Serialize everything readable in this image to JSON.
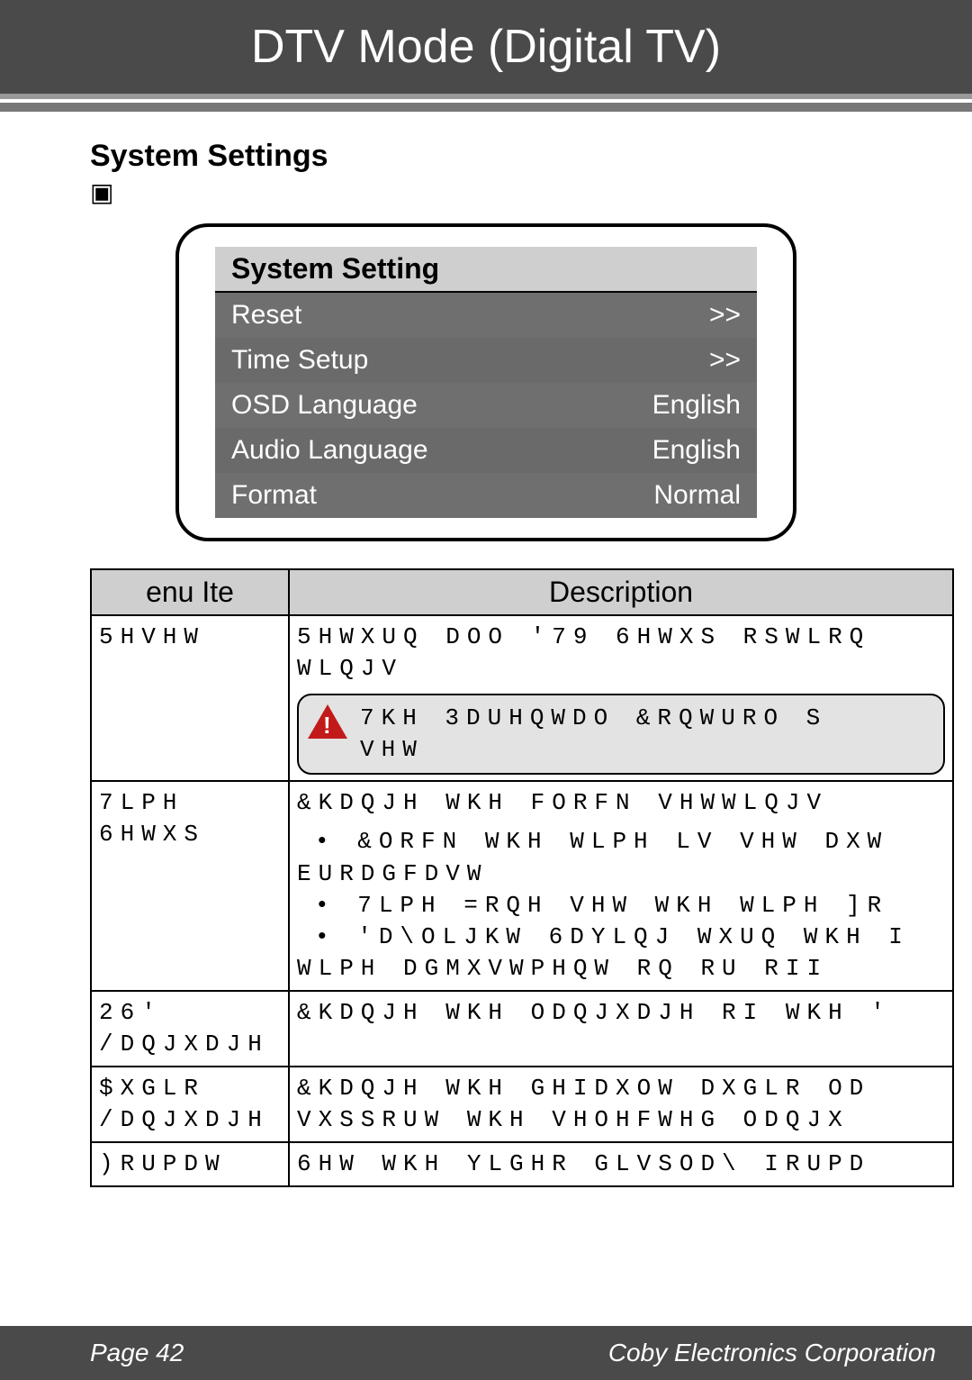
{
  "header": {
    "title": "DTV Mode (Digital TV)"
  },
  "section": {
    "title": "System Settings",
    "subchar": "▣"
  },
  "menu": {
    "header": "System Setting",
    "rows": [
      {
        "label": "Reset",
        "value": ">>"
      },
      {
        "label": "Time Setup",
        "value": ">>"
      },
      {
        "label": "OSD Language",
        "value": "English"
      },
      {
        "label": "Audio Language",
        "value": "English"
      },
      {
        "label": "Format",
        "value": "Normal"
      }
    ]
  },
  "table": {
    "head_item": "enu Ite",
    "head_desc": "Description",
    "rows": [
      {
        "item": "5HVHW",
        "desc_line1": "5HWXUQ DOO '79 6HWXS RSWLRQ",
        "desc_line2": "WLQJV",
        "warn_line1": "7KH 3DUHQWDO &RQWURO S",
        "warn_line2": "VHW"
      },
      {
        "item": "7LPH 6HWXS",
        "head": "&KDQJH WKH FORFN VHWWLQJV",
        "bullets": [
          "&ORFN  WKH WLPH LV VHW DXW\nEURDGFDVW",
          "7LPH =RQH  VHW WKH WLPH ]R",
          "'D\\OLJKW 6DYLQJ  WXUQ WKH I\nWLPH DGMXVWPHQW RQ RU RII"
        ]
      },
      {
        "item": "26' /DQJXDJH",
        "desc": "&KDQJH WKH ODQJXDJH RI WKH '"
      },
      {
        "item": "$XGLR /DQJXDJH",
        "desc": "&KDQJH WKH GHIDXOW DXGLR OD\nVXSSRUW WKH VHOHFWHG ODQJX"
      },
      {
        "item": ")RUPDW",
        "desc": "6HW WKH YLGHR GLVSOD\\ IRUPD"
      }
    ]
  },
  "footer": {
    "page": "Page 42",
    "corp": "Coby Electronics Corporation"
  }
}
